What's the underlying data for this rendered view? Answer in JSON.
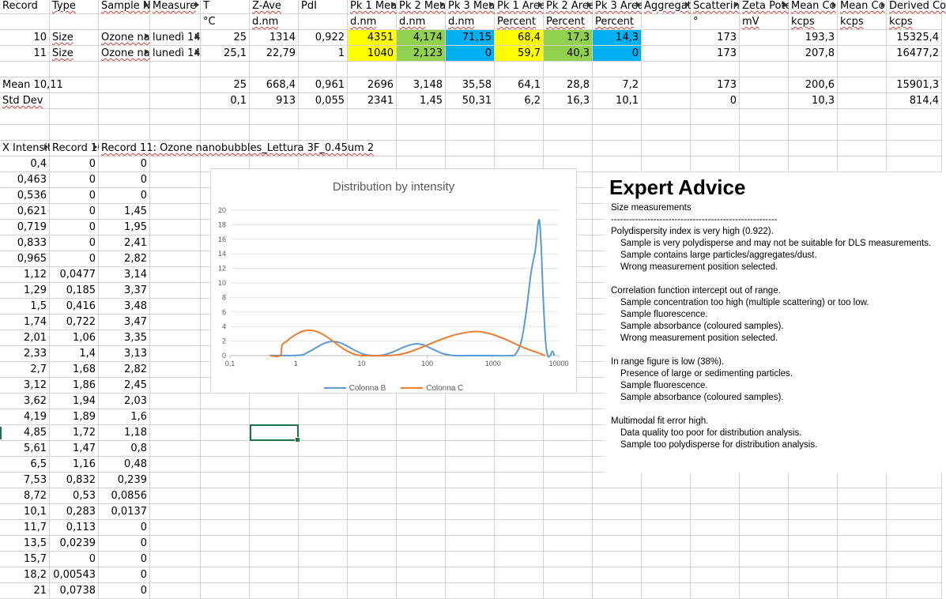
{
  "header_row": [
    "Record",
    "Type",
    "Sample Na",
    "Measure",
    "T",
    "Z-Ave",
    "PdI",
    "Pk 1 Mea",
    "Pk 2 Mea",
    "Pk 3 Mea",
    "Pk 1 Area",
    "Pk 2 Area",
    "Pk 3 Area",
    "Aggregat",
    "Scatterin",
    "Zeta Pote",
    "Mean Co",
    "Mean Co",
    "Derived Co"
  ],
  "unit_row": [
    "",
    "",
    "",
    "",
    "°C",
    "d.nm",
    "",
    "d.nm",
    "d.nm",
    "d.nm",
    "Percent",
    "Percent",
    "Percent",
    "",
    "°",
    "mV",
    "kcps",
    "kcps",
    "kcps"
  ],
  "records": [
    [
      "10",
      "Size",
      "Ozone nan",
      "lunedì 14",
      "25",
      "1314",
      "0,922",
      "4351",
      "4,174",
      "71,15",
      "68,4",
      "17,3",
      "14,3",
      "",
      "173",
      "",
      "193,3",
      "",
      "15325,4"
    ],
    [
      "11",
      "Size",
      "Ozone nan",
      "lunedì 14",
      "25,1",
      "22,79",
      "1",
      "1040",
      "2,123",
      "0",
      "59,7",
      "40,3",
      "0",
      "",
      "173",
      "",
      "207,8",
      "",
      "16477,2"
    ]
  ],
  "stats": [
    [
      "Mean 10,11",
      "",
      "",
      "",
      "25",
      "668,4",
      "0,961",
      "2696",
      "3,148",
      "35,58",
      "64,1",
      "28,8",
      "7,2",
      "",
      "173",
      "",
      "200,6",
      "",
      "15901,3"
    ],
    [
      "Std Dev",
      "",
      "",
      "",
      "0,1",
      "913",
      "0,055",
      "2341",
      "1,45",
      "50,31",
      "6,2",
      "16,3",
      "10,1",
      "",
      "0",
      "",
      "10,3",
      "",
      "814,4"
    ]
  ],
  "dist_header": [
    "X Intensit",
    "Record 10",
    "Record 11: Ozone nanobubbles_Lettura 3F_0.45um 2"
  ],
  "dist_rows": [
    [
      "0,4",
      "0",
      "0"
    ],
    [
      "0,463",
      "0",
      "0"
    ],
    [
      "0,536",
      "0",
      "0"
    ],
    [
      "0,621",
      "0",
      "1,45"
    ],
    [
      "0,719",
      "0",
      "1,95"
    ],
    [
      "0,833",
      "0",
      "2,41"
    ],
    [
      "0,965",
      "0",
      "2,82"
    ],
    [
      "1,12",
      "0,0477",
      "3,14"
    ],
    [
      "1,29",
      "0,185",
      "3,37"
    ],
    [
      "1,5",
      "0,416",
      "3,48"
    ],
    [
      "1,74",
      "0,722",
      "3,47"
    ],
    [
      "2,01",
      "1,06",
      "3,35"
    ],
    [
      "2,33",
      "1,4",
      "3,13"
    ],
    [
      "2,7",
      "1,68",
      "2,82"
    ],
    [
      "3,12",
      "1,86",
      "2,45"
    ],
    [
      "3,62",
      "1,94",
      "2,03"
    ],
    [
      "4,19",
      "1,89",
      "1,6"
    ],
    [
      "4,85",
      "1,72",
      "1,18"
    ],
    [
      "5,61",
      "1,47",
      "0,8"
    ],
    [
      "6,5",
      "1,16",
      "0,48"
    ],
    [
      "7,53",
      "0,832",
      "0,239"
    ],
    [
      "8,72",
      "0,53",
      "0,0856"
    ],
    [
      "10,1",
      "0,283",
      "0,0137"
    ],
    [
      "11,7",
      "0,113",
      "0"
    ],
    [
      "13,5",
      "0,0239",
      "0"
    ],
    [
      "15,7",
      "0",
      "0"
    ],
    [
      "18,2",
      "0,00543",
      "0"
    ],
    [
      "21",
      "0,0738",
      "0"
    ]
  ],
  "chart_data": {
    "type": "line",
    "title": "Distribution by intensity",
    "xscale": "log",
    "xlim": [
      0.1,
      10000
    ],
    "ylim": [
      0,
      20
    ],
    "xticks": [
      "0,1",
      "1",
      "10",
      "100",
      "1000",
      "10000"
    ],
    "yticks": [
      "0",
      "2",
      "4",
      "6",
      "8",
      "10",
      "12",
      "14",
      "16",
      "18",
      "20"
    ],
    "legend_position": "bottom",
    "series": [
      {
        "name": "Colonna B",
        "color": "#5b9bd5",
        "points": [
          [
            0.4,
            0
          ],
          [
            1.12,
            0.05
          ],
          [
            1.5,
            0.42
          ],
          [
            2.01,
            1.06
          ],
          [
            2.7,
            1.68
          ],
          [
            3.62,
            1.94
          ],
          [
            4.85,
            1.72
          ],
          [
            6.5,
            1.16
          ],
          [
            8.72,
            0.53
          ],
          [
            11.7,
            0.11
          ],
          [
            15.7,
            0
          ],
          [
            21,
            0.07
          ],
          [
            30,
            0.5
          ],
          [
            45,
            1.2
          ],
          [
            65,
            1.6
          ],
          [
            85,
            1.5
          ],
          [
            120,
            0.9
          ],
          [
            170,
            0.3
          ],
          [
            240,
            0.03
          ],
          [
            350,
            0
          ],
          [
            600,
            0
          ],
          [
            1000,
            0
          ],
          [
            1800,
            0
          ],
          [
            2200,
            0.2
          ],
          [
            2700,
            2.0
          ],
          [
            3200,
            6.0
          ],
          [
            3800,
            11.5
          ],
          [
            4400,
            14.5
          ],
          [
            5000,
            18.7
          ],
          [
            5400,
            15.0
          ],
          [
            5800,
            8.0
          ],
          [
            6300,
            2.0
          ],
          [
            6800,
            0
          ],
          [
            7400,
            0
          ],
          [
            8000,
            0.6
          ],
          [
            8600,
            0
          ]
        ]
      },
      {
        "name": "Colonna C",
        "color": "#ed7d31",
        "points": [
          [
            0.4,
            0
          ],
          [
            0.58,
            0
          ],
          [
            0.62,
            1.45
          ],
          [
            0.72,
            1.95
          ],
          [
            0.83,
            2.41
          ],
          [
            0.97,
            2.82
          ],
          [
            1.12,
            3.14
          ],
          [
            1.29,
            3.37
          ],
          [
            1.5,
            3.48
          ],
          [
            1.74,
            3.47
          ],
          [
            2.01,
            3.35
          ],
          [
            2.33,
            3.13
          ],
          [
            2.7,
            2.82
          ],
          [
            3.12,
            2.45
          ],
          [
            3.62,
            2.03
          ],
          [
            4.19,
            1.6
          ],
          [
            4.85,
            1.18
          ],
          [
            5.61,
            0.8
          ],
          [
            6.5,
            0.48
          ],
          [
            7.53,
            0.24
          ],
          [
            8.72,
            0.09
          ],
          [
            10.1,
            0.01
          ],
          [
            11.7,
            0
          ],
          [
            25,
            0
          ],
          [
            45,
            0.3
          ],
          [
            80,
            1.1
          ],
          [
            150,
            2.1
          ],
          [
            250,
            2.8
          ],
          [
            400,
            3.2
          ],
          [
            600,
            3.3
          ],
          [
            900,
            3.0
          ],
          [
            1400,
            2.4
          ],
          [
            2200,
            1.6
          ],
          [
            3300,
            0.9
          ],
          [
            4800,
            0.4
          ],
          [
            6200,
            0
          ]
        ]
      }
    ]
  },
  "advice": {
    "title": "Expert Advice",
    "lines": [
      {
        "t": "Size measurements",
        "ind": false
      },
      {
        "t": "-------------------------------------------------------",
        "ind": false
      },
      {
        "t": "Polydispersity index is very high (0.922).",
        "ind": false
      },
      {
        "t": "Sample is very polydisperse and may not be suitable for DLS measurements.",
        "ind": true
      },
      {
        "t": "Sample contains large particles/aggregates/dust.",
        "ind": true
      },
      {
        "t": "Wrong measurement position selected.",
        "ind": true
      },
      {
        "t": "",
        "ind": false
      },
      {
        "t": "Correlation function intercept out of range.",
        "ind": false
      },
      {
        "t": "Sample concentration too high (multiple scattering) or too low.",
        "ind": true
      },
      {
        "t": "Sample fluorescence.",
        "ind": true
      },
      {
        "t": "Sample absorbance (coloured samples).",
        "ind": true
      },
      {
        "t": "Wrong measurement position selected.",
        "ind": true
      },
      {
        "t": "",
        "ind": false
      },
      {
        "t": "In range figure is low (38%).",
        "ind": false
      },
      {
        "t": "Presence of large or sedimenting particles.",
        "ind": true
      },
      {
        "t": "Sample fluorescence.",
        "ind": true
      },
      {
        "t": "Sample absorbance (coloured samples).",
        "ind": true
      },
      {
        "t": "",
        "ind": false
      },
      {
        "t": "Multimodal fit error high.",
        "ind": false
      },
      {
        "t": "Data quality too poor for distribution analysis.",
        "ind": true
      },
      {
        "t": "Sample too polydisperse for distribution analysis.",
        "ind": true
      }
    ]
  }
}
